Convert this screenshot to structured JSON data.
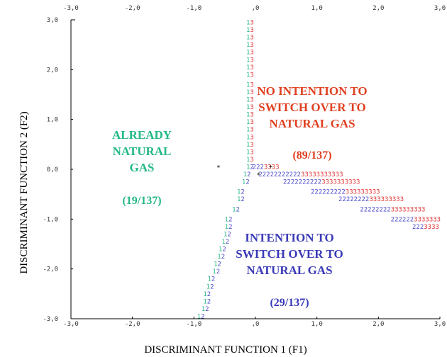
{
  "chart_data": {
    "type": "territorial-map",
    "xlabel": "DISCRIMINANT FUNCTION 1 (F1)",
    "ylabel": "DISCRIMINANT FUNCTION 2 (F2)",
    "xlim": [
      -3.0,
      3.0
    ],
    "ylim": [
      -3.0,
      3.0
    ],
    "x_ticks": [
      -3.0,
      -2.0,
      -1.0,
      0.0,
      1.0,
      2.0,
      3.0
    ],
    "y_ticks": [
      3.0,
      2.0,
      1.0,
      0.0,
      -1.0,
      -2.0,
      -3.0
    ],
    "x_tick_labels": [
      "-3,0",
      "-2,0",
      "-1,0",
      ",0",
      "1,0",
      "2,0",
      "3,0"
    ],
    "y_tick_labels": [
      "3,0",
      "2,0",
      "1,0",
      "0,0",
      "-1,0",
      "-2,0",
      "-3,0"
    ],
    "colors": {
      "group1": "#2bb98a",
      "group2": "#4a4acc",
      "group3": "#e03030",
      "centroid": "#000000"
    },
    "regions": [
      {
        "group": "1",
        "lines": [
          "ALREADY",
          "NATURAL",
          "GAS"
        ],
        "fraction": "(19/137)",
        "color": "#23b887"
      },
      {
        "group": "2",
        "lines": [
          "INTENTION TO",
          "SWITCH OVER TO",
          "NATURAL GAS"
        ],
        "fraction": "(29/137)",
        "color": "#3a3ab8"
      },
      {
        "group": "3",
        "lines": [
          "NO INTENTION TO",
          "SWITCH OVER TO",
          "NATURAL GAS"
        ],
        "fraction": "(89/137)",
        "color": "#e04020"
      }
    ],
    "boundary_1_3": [
      {
        "y": 2.95,
        "x": -0.15
      },
      {
        "y": 2.8,
        "x": -0.15
      },
      {
        "y": 2.65,
        "x": -0.15
      },
      {
        "y": 2.5,
        "x": -0.15
      },
      {
        "y": 2.35,
        "x": -0.15
      },
      {
        "y": 2.2,
        "x": -0.15
      },
      {
        "y": 2.05,
        "x": -0.15
      },
      {
        "y": 1.9,
        "x": -0.15
      },
      {
        "y": 1.7,
        "x": -0.15
      },
      {
        "y": 1.55,
        "x": -0.15
      },
      {
        "y": 1.4,
        "x": -0.15
      },
      {
        "y": 1.25,
        "x": -0.15
      },
      {
        "y": 1.1,
        "x": -0.15
      },
      {
        "y": 0.95,
        "x": -0.15
      },
      {
        "y": 0.8,
        "x": -0.15
      },
      {
        "y": 0.65,
        "x": -0.15
      },
      {
        "y": 0.5,
        "x": -0.15
      },
      {
        "y": 0.35,
        "x": -0.15
      },
      {
        "y": 0.2,
        "x": -0.15
      }
    ],
    "boundary_1_2": [
      {
        "y": 0.05,
        "x": -0.15
      },
      {
        "y": -0.1,
        "x": -0.2
      },
      {
        "y": -0.25,
        "x": -0.22
      },
      {
        "y": -0.45,
        "x": -0.3
      },
      {
        "y": -0.6,
        "x": -0.3
      },
      {
        "y": -0.8,
        "x": -0.38
      },
      {
        "y": -1.0,
        "x": -0.5
      },
      {
        "y": -1.15,
        "x": -0.5
      },
      {
        "y": -1.3,
        "x": -0.52
      },
      {
        "y": -1.45,
        "x": -0.55
      },
      {
        "y": -1.6,
        "x": -0.6
      },
      {
        "y": -1.75,
        "x": -0.62
      },
      {
        "y": -1.9,
        "x": -0.68
      },
      {
        "y": -2.05,
        "x": -0.7
      },
      {
        "y": -2.2,
        "x": -0.78
      },
      {
        "y": -2.35,
        "x": -0.8
      },
      {
        "y": -2.5,
        "x": -0.85
      },
      {
        "y": -2.65,
        "x": -0.85
      },
      {
        "y": -2.8,
        "x": -0.88
      },
      {
        "y": -2.95,
        "x": -0.95
      }
    ],
    "boundary_2_3_rows": [
      {
        "y": 0.05,
        "x_start": -0.05,
        "x_end": 0.4
      },
      {
        "y": -0.1,
        "x_start": 0.05,
        "x_end": 1.45
      },
      {
        "y": -0.25,
        "x_start": 0.45,
        "x_end": 1.7
      },
      {
        "y": -0.45,
        "x_start": 0.9,
        "x_end": 2.05
      },
      {
        "y": -0.6,
        "x_start": 1.35,
        "x_end": 2.4
      },
      {
        "y": -0.8,
        "x_start": 1.7,
        "x_end": 2.75
      },
      {
        "y": -1.0,
        "x_start": 2.2,
        "x_end": 3.0
      },
      {
        "y": -1.15,
        "x_start": 2.55,
        "x_end": 3.0
      }
    ],
    "centroids": [
      {
        "group": "1",
        "x": -0.6,
        "y": 0.05
      },
      {
        "group": "2",
        "x": 0.05,
        "y": -0.1
      },
      {
        "group": "3",
        "x": 0.25,
        "y": 0.05
      }
    ]
  }
}
